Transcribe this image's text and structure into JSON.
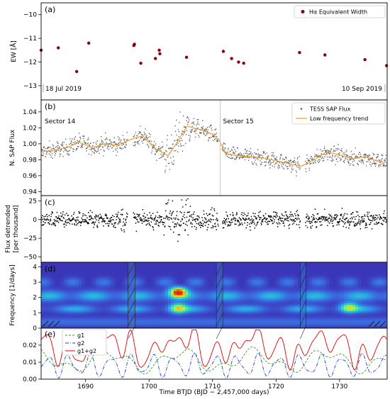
{
  "chart_data": [
    {
      "panel": "(a)",
      "type": "scatter",
      "ylabel": "EW [Å]",
      "ylim": [
        -9.5,
        -13.6
      ],
      "yticks": [
        -10,
        -11,
        -12,
        -13
      ],
      "xlim": [
        1683,
        1737.5
      ],
      "legend": "Hα Equivalent Width",
      "legend_placement": "top-right",
      "date_left": "18 Jul 2019",
      "date_right": "10 Sep 2019",
      "series": [
        {
          "name": "Hα Equivalent Width",
          "color": "#8b0000",
          "x": [
            1683.0,
            1685.7,
            1688.6,
            1690.5,
            1697.6,
            1697.7,
            1698.7,
            1701.0,
            1701.6,
            1701.7,
            1705.9,
            1711.7,
            1713.0,
            1714.1,
            1714.9,
            1723.7,
            1727.7,
            1734.0,
            1737.4
          ],
          "y": [
            -11.5,
            -11.4,
            -12.4,
            -11.2,
            -11.3,
            -11.25,
            -12.05,
            -11.85,
            -11.5,
            -11.65,
            -11.8,
            -11.55,
            -11.85,
            -12.0,
            -12.05,
            -11.6,
            -11.7,
            -11.9,
            -12.15
          ]
        }
      ]
    },
    {
      "panel": "(b)",
      "type": "scatter",
      "ylabel": "N. SAP Flux",
      "ylim": [
        0.935,
        1.055
      ],
      "yticks": [
        0.94,
        0.96,
        0.98,
        1.0,
        1.02,
        1.04
      ],
      "xlim": [
        1683,
        1737.5
      ],
      "sector_labels": [
        "Sector 14",
        "Sector 15"
      ],
      "sector_boundary_x": 1711.2,
      "legend": [
        "TESS SAP Flux",
        "Low frequency trend"
      ],
      "legend_placement": "top-right",
      "trend": {
        "name": "Low frequency trend",
        "color": "#f0a030",
        "x": [
          1683,
          1685,
          1687,
          1689,
          1691,
          1693,
          1695,
          1697,
          1699,
          1701,
          1703,
          1704.5,
          1706,
          1708,
          1710,
          1711,
          1712,
          1714,
          1716,
          1718,
          1720,
          1722,
          1724,
          1726,
          1728,
          1730,
          1732,
          1734,
          1736,
          1737.5
        ],
        "y": [
          0.99,
          0.992,
          0.995,
          1.002,
          0.995,
          1.0,
          0.998,
          1.005,
          1.01,
          0.994,
          0.985,
          1.003,
          1.022,
          1.018,
          1.012,
          1.005,
          0.988,
          0.985,
          0.984,
          0.982,
          0.979,
          0.975,
          0.972,
          0.98,
          0.99,
          0.986,
          0.981,
          0.984,
          0.978,
          0.976
        ]
      },
      "scatter_color": "#555555"
    },
    {
      "panel": "(c)",
      "type": "scatter",
      "ylabel": "Flux detrended",
      "ylabel2": "[per thousand]",
      "ylim": [
        -57,
        32
      ],
      "yticks": [
        -50,
        -25,
        0,
        25
      ],
      "xlim": [
        1683,
        1737.5
      ],
      "scatter_color": "#000000"
    },
    {
      "panel": "(d)",
      "type": "heatmap",
      "ylabel": "Frequency [1/days]",
      "ylim": [
        0,
        4.3
      ],
      "yticks": [
        0,
        1,
        2,
        3,
        4
      ],
      "xlim": [
        1683,
        1737.5
      ],
      "gap_x": [
        [
          1696.7,
          1697.8
        ],
        [
          1710.6,
          1711.6
        ],
        [
          1723.8,
          1724.7
        ]
      ],
      "hot_spots": [
        {
          "x": 1704.6,
          "y": 2.35,
          "intensity": 1.0
        },
        {
          "x": 1704.6,
          "y": 1.3,
          "intensity": 0.6
        },
        {
          "x": 1731.5,
          "y": 1.35,
          "intensity": 0.55
        }
      ]
    },
    {
      "panel": "(e)",
      "type": "line",
      "xlabel": "Time BTJD (BJD − 2,457,000 days)",
      "ylim": [
        0,
        0.03
      ],
      "yticks": [
        0.0,
        0.01,
        0.02
      ],
      "xlim": [
        1683,
        1737.5
      ],
      "xticks": [
        1690,
        1700,
        1710,
        1720,
        1730
      ],
      "legend_placement": "top-left",
      "series": [
        {
          "name": "g1",
          "color": "#2ca02c",
          "dash": "dashed"
        },
        {
          "name": "g2",
          "color": "#1f3fd0",
          "dash": "dashdot"
        },
        {
          "name": "g1+g2",
          "color": "#e00000",
          "dash": "solid"
        }
      ]
    }
  ]
}
